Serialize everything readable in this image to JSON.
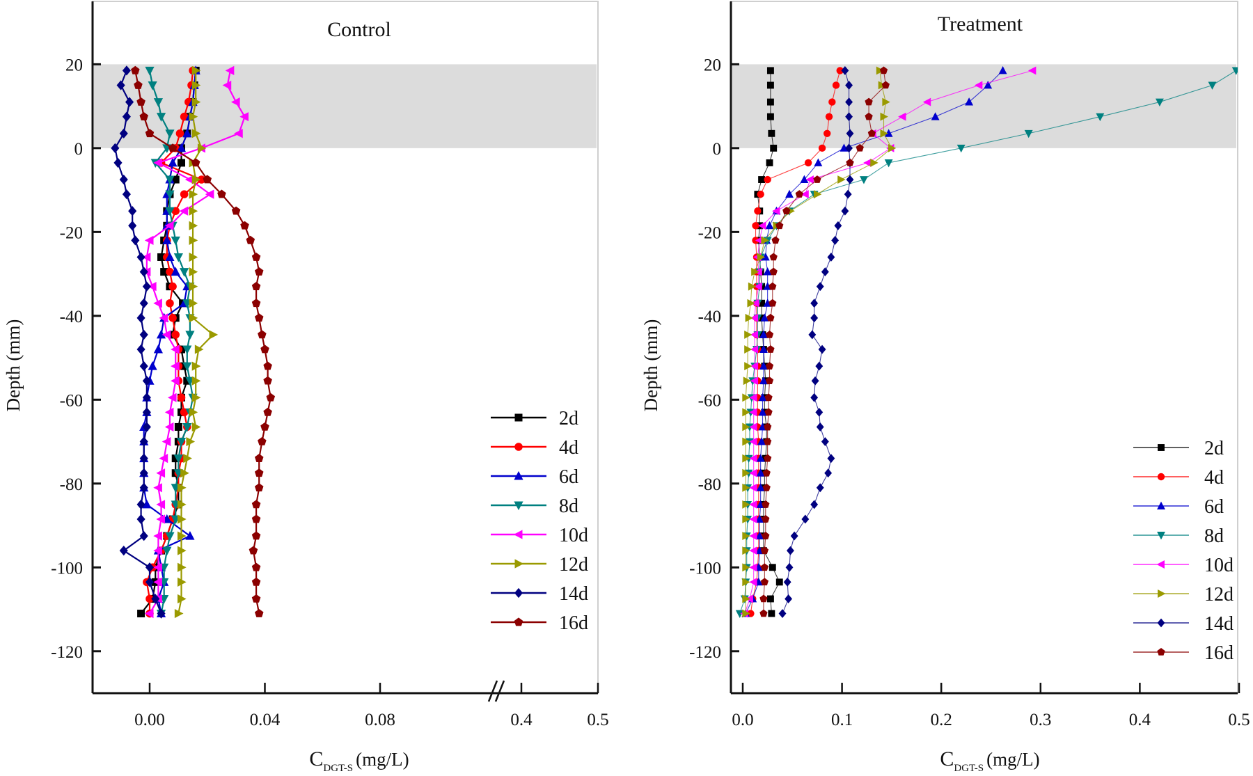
{
  "chart_data": [
    {
      "type": "line",
      "title": "Control",
      "xlabel": "C_DGT-S (mg/L)",
      "xlabel_main": "C",
      "xlabel_sub": "DGT-S",
      "xlabel_unit": "(mg/L)",
      "ylabel": "Depth (mm)",
      "ylim": [
        -130,
        35
      ],
      "xlim": [
        -0.018,
        0.5
      ],
      "x_axis_break": [
        0.1,
        0.38
      ],
      "xticks": [
        "0.00",
        "0.04",
        "0.08",
        "0.4",
        "0.5"
      ],
      "xtick_values": [
        0.0,
        0.04,
        0.08,
        0.4,
        0.5
      ],
      "yticks": [
        "20",
        "0",
        "-20",
        "-40",
        "-60",
        "-80",
        "-100",
        "-120"
      ],
      "ytick_values": [
        20,
        0,
        -20,
        -40,
        -60,
        -80,
        -100,
        -120
      ],
      "shaded_band": {
        "from": 0,
        "to": 20,
        "color": "#dcdcdc"
      },
      "legend_position": "bottom-right",
      "grid": false,
      "depth": [
        18.5,
        15,
        11,
        7.5,
        3.5,
        0,
        -3.5,
        -7.5,
        -11,
        -15,
        -18.5,
        -22,
        -26,
        -29.5,
        -33,
        -37,
        -40.5,
        -44.5,
        -48,
        -52,
        -55.5,
        -59.5,
        -63,
        -66.5,
        -70,
        -74,
        -77.5,
        -81,
        -85,
        -88.5,
        -92.5,
        -96,
        -100,
        -103.5,
        -107.5,
        -111
      ],
      "series": [
        {
          "name": "2d",
          "color": "#000000",
          "marker": "square",
          "values": [
            0.016,
            0.0155,
            0.015,
            0.014,
            0.013,
            0.011,
            0.011,
            0.009,
            0.007,
            0.006,
            0.006,
            0.005,
            0.004,
            0.005,
            0.007,
            0.0115,
            0.009,
            0.008,
            0.011,
            0.012,
            0.013,
            0.011,
            0.011,
            0.01,
            0.01,
            0.009,
            0.009,
            0.01,
            0.01,
            0.008,
            0.006,
            0.004,
            0.002,
            0.002,
            0.001,
            -0.003
          ]
        },
        {
          "name": "4d",
          "color": "#ff0000",
          "marker": "circle",
          "values": [
            0.015,
            0.0145,
            0.0135,
            0.012,
            0.0105,
            0.009,
            0.004,
            0.018,
            0.012,
            0.009,
            0.007,
            0.006,
            0.006,
            0.007,
            0.008,
            0.007,
            0.008,
            0.009,
            0.01,
            0.01,
            0.01,
            0.011,
            0.012,
            0.013,
            0.011,
            0.011,
            0.01,
            0.01,
            0.009,
            0.008,
            0.006,
            0.004,
            0.001,
            -0.001,
            0.0,
            0.0
          ]
        },
        {
          "name": "6d",
          "color": "#0000cd",
          "marker": "triangle-up",
          "values": [
            0.016,
            0.0155,
            0.015,
            0.014,
            0.013,
            0.011,
            0.008,
            0.007,
            0.006,
            0.006,
            0.006,
            0.006,
            0.007,
            0.009,
            0.013,
            0.012,
            0.005,
            0.004,
            0.003,
            0.001,
            0.0,
            -0.001,
            -0.001,
            -0.002,
            -0.002,
            -0.002,
            -0.002,
            -0.002,
            -0.001,
            0.006,
            0.014,
            0.003,
            0.004,
            0.005,
            0.003,
            0.004
          ]
        },
        {
          "name": "8d",
          "color": "#008080",
          "marker": "triangle-down",
          "values": [
            0.0,
            0.001,
            0.003,
            0.004,
            0.007,
            0.006,
            0.002,
            0.007,
            0.007,
            0.007,
            0.008,
            0.009,
            0.01,
            0.012,
            0.014,
            0.013,
            0.014,
            0.014,
            0.013,
            0.013,
            0.014,
            0.015,
            0.014,
            0.013,
            0.011,
            0.01,
            0.01,
            0.009,
            0.009,
            0.009,
            0.007,
            0.006,
            0.005,
            0.005,
            0.005,
            0.004
          ]
        },
        {
          "name": "10d",
          "color": "#ff00ff",
          "marker": "triangle-left",
          "values": [
            0.028,
            0.027,
            0.03,
            0.033,
            0.031,
            0.018,
            0.003,
            0.014,
            0.021,
            0.012,
            0.007,
            0.0,
            -0.001,
            -0.001,
            0.001,
            0.003,
            0.005,
            0.006,
            0.009,
            0.009,
            0.009,
            0.008,
            0.007,
            0.007,
            0.006,
            0.005,
            0.004,
            0.003,
            0.004,
            0.004,
            0.003,
            0.003,
            0.003,
            0.003,
            0.003,
            0.0
          ]
        },
        {
          "name": "12d",
          "color": "#9a9a00",
          "marker": "triangle-right",
          "values": [
            0.016,
            0.016,
            0.016,
            0.015,
            0.016,
            0.018,
            0.015,
            0.016,
            0.015,
            0.015,
            0.015,
            0.015,
            0.015,
            0.015,
            0.015,
            0.015,
            0.015,
            0.022,
            0.017,
            0.016,
            0.016,
            0.016,
            0.015,
            0.016,
            0.014,
            0.013,
            0.012,
            0.011,
            0.011,
            0.011,
            0.011,
            0.011,
            0.011,
            0.011,
            0.011,
            0.01
          ]
        },
        {
          "name": "14d",
          "color": "#000080",
          "marker": "diamond",
          "values": [
            -0.008,
            -0.01,
            -0.007,
            -0.008,
            -0.009,
            -0.012,
            -0.011,
            -0.009,
            -0.008,
            -0.006,
            -0.006,
            -0.005,
            -0.003,
            -0.002,
            -0.001,
            -0.002,
            -0.003,
            -0.002,
            -0.003,
            -0.002,
            -0.001,
            -0.001,
            -0.001,
            -0.001,
            -0.002,
            -0.002,
            -0.002,
            -0.002,
            -0.003,
            -0.003,
            -0.002,
            -0.009,
            0.0,
            0.0,
            0.002,
            0.004
          ]
        },
        {
          "name": "16d",
          "color": "#8b0000",
          "marker": "pentagon",
          "values": [
            -0.005,
            -0.004,
            -0.003,
            -0.002,
            0.0,
            0.008,
            0.016,
            0.02,
            0.025,
            0.03,
            0.033,
            0.035,
            0.037,
            0.038,
            0.037,
            0.037,
            0.038,
            0.039,
            0.04,
            0.041,
            0.041,
            0.042,
            0.041,
            0.04,
            0.039,
            0.038,
            0.038,
            0.038,
            0.037,
            0.037,
            0.037,
            0.036,
            0.037,
            0.037,
            0.037,
            0.038
          ]
        }
      ]
    },
    {
      "type": "line",
      "title": "Treatment",
      "xlabel": "C_DGT-S (mg/L)",
      "xlabel_main": "C",
      "xlabel_sub": "DGT-S",
      "xlabel_unit": "(mg/L)",
      "ylabel": "Depth (mm)",
      "ylim": [
        -130,
        35
      ],
      "xlim": [
        -0.01,
        0.5
      ],
      "xticks": [
        "0.0",
        "0.1",
        "0.2",
        "0.3",
        "0.4",
        "0.5"
      ],
      "xtick_values": [
        0.0,
        0.1,
        0.2,
        0.3,
        0.4,
        0.5
      ],
      "yticks": [
        "20",
        "0",
        "-20",
        "-40",
        "-60",
        "-80",
        "-100",
        "-120"
      ],
      "ytick_values": [
        20,
        0,
        -20,
        -40,
        -60,
        -80,
        -100,
        -120
      ],
      "shaded_band": {
        "from": 0,
        "to": 20,
        "color": "#dcdcdc"
      },
      "legend_position": "bottom-right",
      "grid": false,
      "depth": [
        18.5,
        15,
        11,
        7.5,
        3.5,
        0,
        -3.5,
        -7.5,
        -11,
        -15,
        -18.5,
        -22,
        -26,
        -29.5,
        -33,
        -37,
        -40.5,
        -44.5,
        -48,
        -52,
        -55.5,
        -59.5,
        -63,
        -66.5,
        -70,
        -74,
        -77.5,
        -81,
        -85,
        -88.5,
        -92.5,
        -96,
        -100,
        -103.5,
        -107.5,
        -111
      ],
      "series": [
        {
          "name": "2d",
          "color": "#000000",
          "marker": "square",
          "values": [
            0.028,
            0.028,
            0.028,
            0.028,
            0.029,
            0.031,
            0.027,
            0.019,
            0.015,
            0.017,
            0.017,
            0.016,
            0.017,
            0.018,
            0.019,
            0.019,
            0.019,
            0.02,
            0.021,
            0.022,
            0.023,
            0.022,
            0.022,
            0.024,
            0.024,
            0.023,
            0.022,
            0.022,
            0.021,
            0.021,
            0.021,
            0.021,
            0.03,
            0.037,
            0.028,
            0.029
          ]
        },
        {
          "name": "4d",
          "color": "#ff0000",
          "marker": "circle",
          "values": [
            0.098,
            0.094,
            0.09,
            0.087,
            0.085,
            0.08,
            0.066,
            0.025,
            0.018,
            0.015,
            0.013,
            0.013,
            0.014,
            0.014,
            0.014,
            0.014,
            0.014,
            0.014,
            0.015,
            0.015,
            0.015,
            0.015,
            0.015,
            0.015,
            0.016,
            0.016,
            0.016,
            0.016,
            0.016,
            0.016,
            0.016,
            0.016,
            0.015,
            0.014,
            0.01,
            0.008
          ]
        },
        {
          "name": "6d",
          "color": "#0000cd",
          "marker": "triangle-up",
          "values": [
            0.262,
            0.247,
            0.228,
            0.194,
            0.147,
            0.102,
            0.076,
            0.062,
            0.047,
            0.034,
            0.027,
            0.024,
            0.023,
            0.025,
            0.025,
            0.025,
            0.022,
            0.021,
            0.021,
            0.021,
            0.021,
            0.02,
            0.02,
            0.02,
            0.019,
            0.018,
            0.018,
            0.018,
            0.018,
            0.017,
            0.017,
            0.017,
            0.016,
            0.016,
            0.01,
            0.003
          ]
        },
        {
          "name": "8d",
          "color": "#008080",
          "marker": "triangle-down",
          "values": [
            0.497,
            0.473,
            0.42,
            0.36,
            0.288,
            0.22,
            0.147,
            0.122,
            0.072,
            0.047,
            0.034,
            0.025,
            0.018,
            0.017,
            0.017,
            0.015,
            0.015,
            0.015,
            0.014,
            0.012,
            0.01,
            0.009,
            0.008,
            0.007,
            0.007,
            0.006,
            0.006,
            0.005,
            0.005,
            0.005,
            0.004,
            0.004,
            0.004,
            0.003,
            0.002,
            -0.003
          ]
        },
        {
          "name": "10d",
          "color": "#ff00ff",
          "marker": "triangle-right-mag",
          "values": [
            0.292,
            0.238,
            0.186,
            0.161,
            0.131,
            0.149,
            0.126,
            0.068,
            0.063,
            0.034,
            0.02,
            0.017,
            0.015,
            0.016,
            0.016,
            0.013,
            0.012,
            0.012,
            0.012,
            0.012,
            0.012,
            0.011,
            0.011,
            0.011,
            0.011,
            0.011,
            0.011,
            0.011,
            0.011,
            0.011,
            0.011,
            0.011,
            0.011,
            0.011,
            0.007,
            0.002
          ]
        },
        {
          "name": "12d",
          "color": "#9a9a00",
          "marker": "triangle-right",
          "values": [
            0.138,
            0.14,
            0.144,
            0.142,
            0.142,
            0.15,
            0.132,
            0.099,
            0.075,
            0.048,
            0.034,
            0.022,
            0.018,
            0.012,
            0.009,
            0.008,
            0.006,
            0.005,
            0.005,
            0.005,
            0.004,
            0.003,
            0.003,
            0.003,
            0.003,
            0.003,
            0.003,
            0.003,
            0.003,
            0.003,
            0.003,
            0.003,
            0.003,
            0.003,
            0.003,
            0.003
          ]
        },
        {
          "name": "14d",
          "color": "#000080",
          "marker": "diamond",
          "values": [
            0.103,
            0.107,
            0.107,
            0.107,
            0.108,
            0.107,
            0.108,
            0.108,
            0.106,
            0.103,
            0.096,
            0.093,
            0.089,
            0.083,
            0.078,
            0.072,
            0.072,
            0.07,
            0.08,
            0.077,
            0.073,
            0.072,
            0.077,
            0.078,
            0.083,
            0.089,
            0.086,
            0.078,
            0.072,
            0.063,
            0.052,
            0.048,
            0.047,
            0.045,
            0.046,
            0.04
          ]
        },
        {
          "name": "16d",
          "color": "#8b0000",
          "marker": "pentagon",
          "values": [
            0.142,
            0.144,
            0.127,
            0.127,
            0.13,
            0.118,
            0.108,
            0.075,
            0.057,
            0.044,
            0.037,
            0.033,
            0.031,
            0.031,
            0.03,
            0.03,
            0.028,
            0.027,
            0.028,
            0.027,
            0.027,
            0.026,
            0.026,
            0.025,
            0.025,
            0.025,
            0.024,
            0.024,
            0.023,
            0.023,
            0.023,
            0.022,
            0.022,
            0.022,
            0.021,
            0.021
          ]
        }
      ]
    }
  ]
}
